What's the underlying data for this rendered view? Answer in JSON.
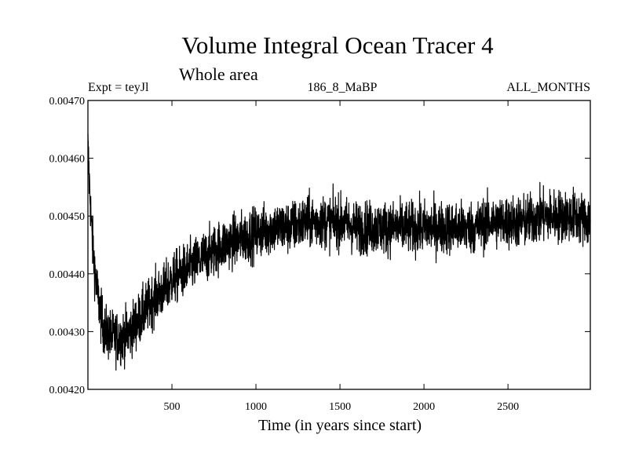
{
  "chart_data": {
    "type": "line",
    "title": "Volume Integral Ocean Tracer 4",
    "subtitle": "Whole area",
    "annotations": {
      "experiment": "Expt = teyJl",
      "run": "186_8_MaBP",
      "months": "ALL_MONTHS"
    },
    "xlabel": "Time (in years since start)",
    "ylabel": "",
    "xlim": [
      0,
      2990
    ],
    "ylim": [
      0.0042,
      0.0047
    ],
    "x_ticks": [
      500,
      1000,
      1500,
      2000,
      2500
    ],
    "x_tick_labels": [
      "500",
      "1000",
      "1500",
      "2000",
      "2500"
    ],
    "y_ticks": [
      0.0042,
      0.0043,
      0.0044,
      0.0045,
      0.0046,
      0.0047
    ],
    "y_tick_labels": [
      "0.00420",
      "0.00430",
      "0.00440",
      "0.00450",
      "0.00460",
      "0.00470"
    ],
    "grid": false,
    "series": [
      {
        "name": "Ocean Tracer 4 volume integral",
        "color": "#000000",
        "x": [
          0,
          10,
          25,
          50,
          75,
          100,
          150,
          200,
          250,
          300,
          350,
          400,
          450,
          500,
          600,
          700,
          800,
          900,
          1000,
          1100,
          1200,
          1300,
          1400,
          1500,
          1600,
          1700,
          1800,
          1900,
          2000,
          2100,
          2200,
          2300,
          2400,
          2500,
          2600,
          2700,
          2800,
          2900,
          2990
        ],
        "y": [
          0.00462,
          0.00455,
          0.00446,
          0.00438,
          0.00433,
          0.0043,
          0.00429,
          0.00429,
          0.0043,
          0.00432,
          0.00434,
          0.00436,
          0.00437,
          0.00439,
          0.00441,
          0.00443,
          0.00445,
          0.00446,
          0.00447,
          0.00448,
          0.00448,
          0.00449,
          0.00449,
          0.00449,
          0.00448,
          0.00448,
          0.00448,
          0.00448,
          0.00448,
          0.00448,
          0.00448,
          0.00448,
          0.00449,
          0.00449,
          0.00449,
          0.0045,
          0.0045,
          0.0045,
          0.00449
        ],
        "noise_amplitude": 5e-05
      }
    ]
  }
}
